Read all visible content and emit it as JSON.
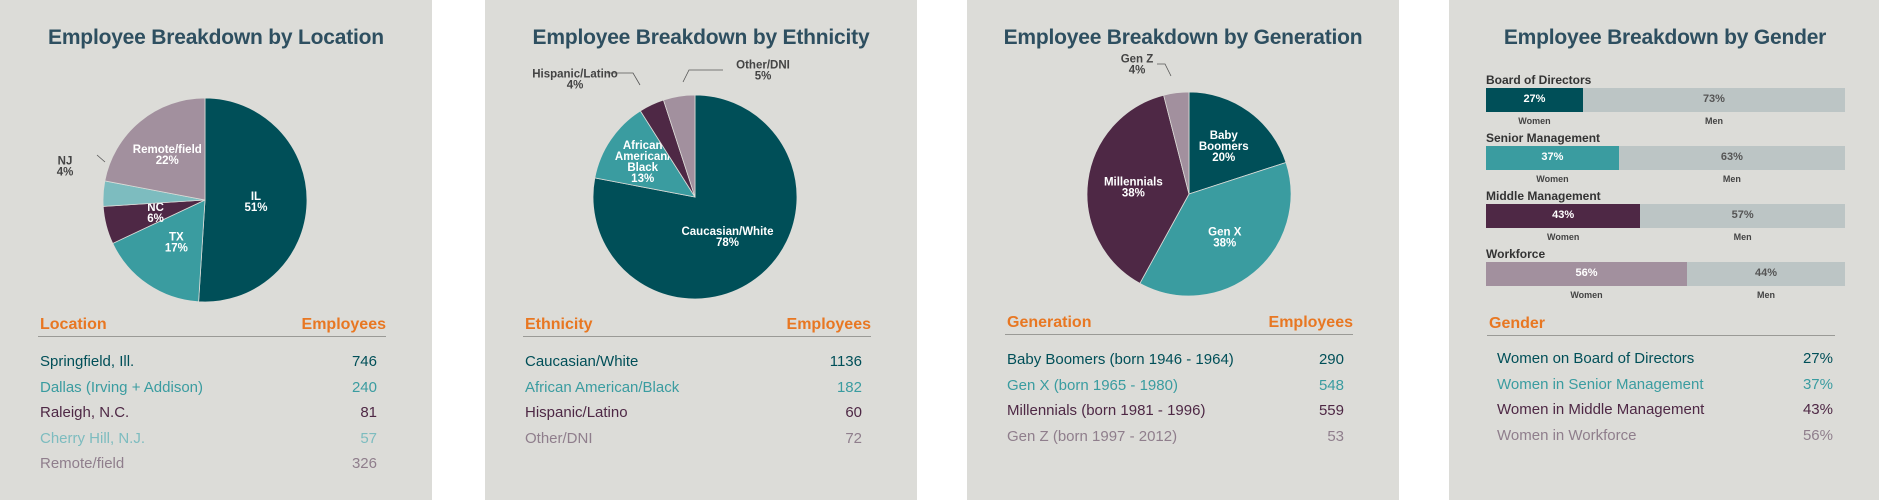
{
  "colors": {
    "dark_teal": "#004f58",
    "teal": "#3a9ca0",
    "light_teal": "#7dbcbf",
    "plum": "#4e2845",
    "mauve": "#a2909e",
    "track": "#bcc5c5",
    "orange": "#e87722",
    "title": "#2e4f60"
  },
  "chart_data": [
    {
      "type": "pie",
      "title": "Employee Breakdown by Location",
      "slices": [
        {
          "label": "IL",
          "value": 51,
          "color": "#004f58"
        },
        {
          "label": "TX",
          "value": 17,
          "color": "#3a9ca0"
        },
        {
          "label": "NC",
          "value": 6,
          "color": "#4e2845"
        },
        {
          "label": "NJ",
          "value": 4,
          "color": "#7dbcbf"
        },
        {
          "label": "Remote/field",
          "value": 22,
          "color": "#a2909e"
        }
      ],
      "table": {
        "headers": [
          "Location",
          "Employees"
        ],
        "rows": [
          {
            "label": "Springfield, Ill.",
            "value": "746",
            "color": "#004f58"
          },
          {
            "label": "Dallas (Irving + Addison)",
            "value": "240",
            "color": "#3a9ca0"
          },
          {
            "label": "Raleigh, N.C.",
            "value": "81",
            "color": "#4e2845"
          },
          {
            "label": "Cherry Hill, N.J.",
            "value": "57",
            "color": "#7dbcbf"
          },
          {
            "label": "Remote/field",
            "value": "326",
            "color": "#8f7e8c"
          }
        ]
      }
    },
    {
      "type": "pie",
      "title": "Employee Breakdown by Ethnicity",
      "slices": [
        {
          "label": "Caucasian/White",
          "value": 78,
          "color": "#004f58"
        },
        {
          "label": "African American/ Black",
          "value": 13,
          "color": "#3a9ca0"
        },
        {
          "label": "Hispanic/Latino",
          "value": 4,
          "color": "#4e2845"
        },
        {
          "label": "Other/DNI",
          "value": 5,
          "color": "#a2909e"
        }
      ],
      "table": {
        "headers": [
          "Ethnicity",
          "Employees"
        ],
        "rows": [
          {
            "label": "Caucasian/White",
            "value": "1136",
            "color": "#004f58"
          },
          {
            "label": "African American/Black",
            "value": "182",
            "color": "#3a9ca0"
          },
          {
            "label": "Hispanic/Latino",
            "value": "60",
            "color": "#4e2845"
          },
          {
            "label": "Other/DNI",
            "value": "72",
            "color": "#8f7e8c"
          }
        ]
      }
    },
    {
      "type": "pie",
      "title": "Employee Breakdown by Generation",
      "slices": [
        {
          "label": "Baby Boomers",
          "value": 20,
          "color": "#004f58"
        },
        {
          "label": "Gen X",
          "value": 38,
          "color": "#3a9ca0"
        },
        {
          "label": "Millennials",
          "value": 38,
          "color": "#4e2845"
        },
        {
          "label": "Gen Z",
          "value": 4,
          "color": "#a2909e"
        }
      ],
      "table": {
        "headers": [
          "Generation",
          "Employees"
        ],
        "rows": [
          {
            "label": "Baby Boomers (born 1946 - 1964)",
            "value": "290",
            "color": "#004f58"
          },
          {
            "label": "Gen X (born 1965 - 1980)",
            "value": "548",
            "color": "#3a9ca0"
          },
          {
            "label": "Millennials (born 1981 - 1996)",
            "value": "559",
            "color": "#4e2845"
          },
          {
            "label": "Gen Z (born 1997 - 2012)",
            "value": "53",
            "color": "#8f7e8c"
          }
        ]
      }
    },
    {
      "type": "bar",
      "title": "Employee Breakdown by Gender",
      "categories": [
        "Board of Directors",
        "Senior Management",
        "Middle Management",
        "Workforce"
      ],
      "series": [
        {
          "name": "Women",
          "values": [
            27,
            37,
            43,
            56
          ],
          "colors": [
            "#004f58",
            "#3a9ca0",
            "#4e2845",
            "#a2909e"
          ]
        },
        {
          "name": "Men",
          "values": [
            73,
            63,
            57,
            44
          ]
        }
      ],
      "table": {
        "headers": [
          "Gender",
          ""
        ],
        "rows": [
          {
            "label": "Women on Board of Directors",
            "value": "27%",
            "color": "#004f58"
          },
          {
            "label": "Women in Senior Management",
            "value": "37%",
            "color": "#3a9ca0"
          },
          {
            "label": "Women in Middle Management",
            "value": "43%",
            "color": "#4e2845"
          },
          {
            "label": "Women in Workforce",
            "value": "56%",
            "color": "#8f7e8c"
          }
        ]
      }
    }
  ]
}
